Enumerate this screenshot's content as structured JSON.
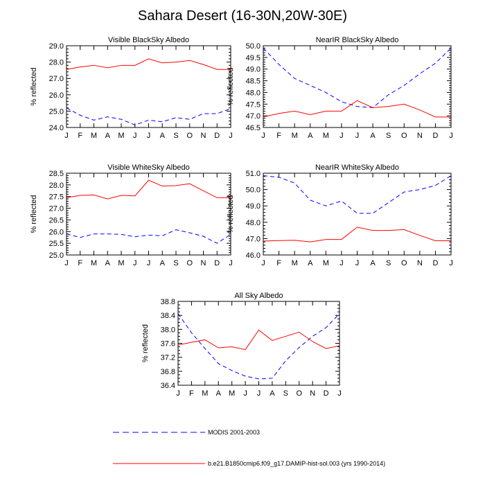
{
  "figure": {
    "title": "Sahara Desert (16-30N,20W-30E)"
  },
  "legend": [
    {
      "label": "MODIS 2001-2003",
      "color": "#0000ff",
      "dash": true
    },
    {
      "label": "b.e21.B1850cmip6.f09_g17.DAMIP-hist-sol.003 (yrs 1990-2014)",
      "color": "#ff0000",
      "dash": false
    }
  ],
  "chart_data": [
    {
      "type": "line",
      "title": "Visible BlackSky Albedo",
      "ylabel": "% reflected",
      "categories": [
        "J",
        "F",
        "M",
        "A",
        "M",
        "J",
        "J",
        "A",
        "S",
        "O",
        "N",
        "D",
        "J"
      ],
      "ylim": [
        24.0,
        29.0
      ],
      "yticks": [
        24.0,
        25.0,
        26.0,
        27.0,
        28.0,
        29.0
      ],
      "yminor": [
        24.2,
        24.4,
        24.6,
        24.8,
        25.2,
        25.4,
        25.6,
        25.8,
        26.2,
        26.4,
        26.6,
        26.8,
        27.2,
        27.4,
        27.6,
        27.8,
        28.2,
        28.4,
        28.6,
        28.8
      ],
      "series": [
        {
          "name": "MODIS 2001-2003",
          "color": "#0000ff",
          "dash": true,
          "values": [
            25.2,
            24.75,
            24.45,
            24.65,
            24.5,
            24.15,
            24.45,
            24.35,
            24.6,
            24.5,
            24.85,
            24.85,
            25.15
          ]
        },
        {
          "name": "b.e21.B1850cmip6.f09_g17.DAMIP-hist-sol.003 (yrs 1990-2014)",
          "color": "#ff0000",
          "dash": false,
          "values": [
            27.55,
            27.7,
            27.8,
            27.65,
            27.8,
            27.8,
            28.2,
            27.95,
            28.0,
            28.1,
            27.85,
            27.55,
            27.55
          ]
        }
      ]
    },
    {
      "type": "line",
      "title": "NearIR BlackSky Albedo",
      "ylabel": "% reflected",
      "categories": [
        "J",
        "F",
        "M",
        "A",
        "M",
        "J",
        "J",
        "A",
        "S",
        "O",
        "N",
        "D",
        "J"
      ],
      "ylim": [
        46.5,
        50.0
      ],
      "yticks": [
        46.5,
        47.0,
        47.5,
        48.0,
        48.5,
        49.0,
        49.5,
        50.0
      ],
      "yminor": [
        46.6,
        46.7,
        46.8,
        46.9,
        47.1,
        47.2,
        47.3,
        47.4,
        47.6,
        47.7,
        47.8,
        47.9,
        48.1,
        48.2,
        48.3,
        48.4,
        48.6,
        48.7,
        48.8,
        48.9,
        49.1,
        49.2,
        49.3,
        49.4,
        49.6,
        49.7,
        49.8,
        49.9
      ],
      "series": [
        {
          "name": "MODIS 2001-2003",
          "color": "#0000ff",
          "dash": true,
          "values": [
            49.9,
            49.2,
            48.6,
            48.3,
            48.0,
            47.6,
            47.4,
            47.35,
            47.9,
            48.3,
            48.8,
            49.25,
            49.9
          ]
        },
        {
          "name": "b.e21.B1850cmip6.f09_g17.DAMIP-hist-sol.003 (yrs 1990-2014)",
          "color": "#ff0000",
          "dash": false,
          "values": [
            46.95,
            47.1,
            47.2,
            47.05,
            47.2,
            47.2,
            47.65,
            47.35,
            47.4,
            47.5,
            47.25,
            46.95,
            46.95
          ]
        }
      ]
    },
    {
      "type": "line",
      "title": "Visible WhiteSky Albedo",
      "ylabel": "% reflected",
      "categories": [
        "J",
        "F",
        "M",
        "A",
        "M",
        "J",
        "J",
        "A",
        "S",
        "O",
        "N",
        "D",
        "J"
      ],
      "ylim": [
        25.0,
        28.5
      ],
      "yticks": [
        25.0,
        25.5,
        26.0,
        26.5,
        27.0,
        27.5,
        28.0,
        28.5
      ],
      "yminor": [
        25.1,
        25.2,
        25.3,
        25.4,
        25.6,
        25.7,
        25.8,
        25.9,
        26.1,
        26.2,
        26.3,
        26.4,
        26.6,
        26.7,
        26.8,
        26.9,
        27.1,
        27.2,
        27.3,
        27.4,
        27.6,
        27.7,
        27.8,
        27.9,
        28.1,
        28.2,
        28.3,
        28.4
      ],
      "series": [
        {
          "name": "MODIS 2001-2003",
          "color": "#0000ff",
          "dash": true,
          "values": [
            25.9,
            25.75,
            25.9,
            25.9,
            25.88,
            25.78,
            25.85,
            25.82,
            26.08,
            25.95,
            25.8,
            25.5,
            25.88
          ]
        },
        {
          "name": "b.e21.B1850cmip6.f09_g17.DAMIP-hist-sol.003 (yrs 1990-2014)",
          "color": "#ff0000",
          "dash": false,
          "values": [
            27.45,
            27.55,
            27.57,
            27.4,
            27.55,
            27.53,
            28.2,
            27.95,
            27.97,
            28.05,
            27.75,
            27.45,
            27.45
          ]
        }
      ]
    },
    {
      "type": "line",
      "title": "NearIR WhiteSky Albedo",
      "ylabel": "% reflected",
      "categories": [
        "J",
        "F",
        "M",
        "A",
        "M",
        "J",
        "J",
        "A",
        "S",
        "O",
        "N",
        "D",
        "J"
      ],
      "ylim": [
        46.0,
        51.0
      ],
      "yticks": [
        46.0,
        47.0,
        48.0,
        49.0,
        50.0,
        51.0
      ],
      "yminor": [
        46.2,
        46.4,
        46.6,
        46.8,
        47.2,
        47.4,
        47.6,
        47.8,
        48.2,
        48.4,
        48.6,
        48.8,
        49.2,
        49.4,
        49.6,
        49.8,
        50.2,
        50.4,
        50.6,
        50.8
      ],
      "series": [
        {
          "name": "MODIS 2001-2003",
          "color": "#0000ff",
          "dash": true,
          "values": [
            50.85,
            50.75,
            50.4,
            49.35,
            49.0,
            49.3,
            48.55,
            48.55,
            49.2,
            49.85,
            50.0,
            50.25,
            50.85
          ]
        },
        {
          "name": "b.e21.B1850cmip6.f09_g17.DAMIP-hist-sol.003 (yrs 1990-2014)",
          "color": "#ff0000",
          "dash": false,
          "values": [
            46.85,
            46.88,
            46.9,
            46.8,
            46.95,
            46.95,
            47.7,
            47.5,
            47.5,
            47.55,
            47.2,
            46.87,
            46.87
          ]
        }
      ]
    },
    {
      "type": "line",
      "title": "All Sky Albedo",
      "ylabel": "% reflected",
      "categories": [
        "J",
        "F",
        "M",
        "A",
        "M",
        "J",
        "J",
        "A",
        "S",
        "O",
        "N",
        "D",
        "J"
      ],
      "ylim": [
        36.4,
        38.8
      ],
      "yticks": [
        36.4,
        36.8,
        37.2,
        37.6,
        38.0,
        38.4,
        38.8
      ],
      "yminor": [
        36.5,
        36.6,
        36.7,
        36.9,
        37.0,
        37.1,
        37.3,
        37.4,
        37.5,
        37.7,
        37.8,
        37.9,
        38.1,
        38.2,
        38.3,
        38.5,
        38.6,
        38.7
      ],
      "series": [
        {
          "name": "MODIS 2001-2003",
          "color": "#0000ff",
          "dash": true,
          "values": [
            38.45,
            37.9,
            37.45,
            37.02,
            36.82,
            36.66,
            36.58,
            36.6,
            37.1,
            37.48,
            37.8,
            38.05,
            38.45
          ]
        },
        {
          "name": "b.e21.B1850cmip6.f09_g17.DAMIP-hist-sol.003 (yrs 1990-2014)",
          "color": "#ff0000",
          "dash": false,
          "values": [
            37.55,
            37.63,
            37.7,
            37.47,
            37.5,
            37.42,
            37.98,
            37.68,
            37.8,
            37.92,
            37.65,
            37.45,
            37.53
          ]
        }
      ]
    }
  ]
}
